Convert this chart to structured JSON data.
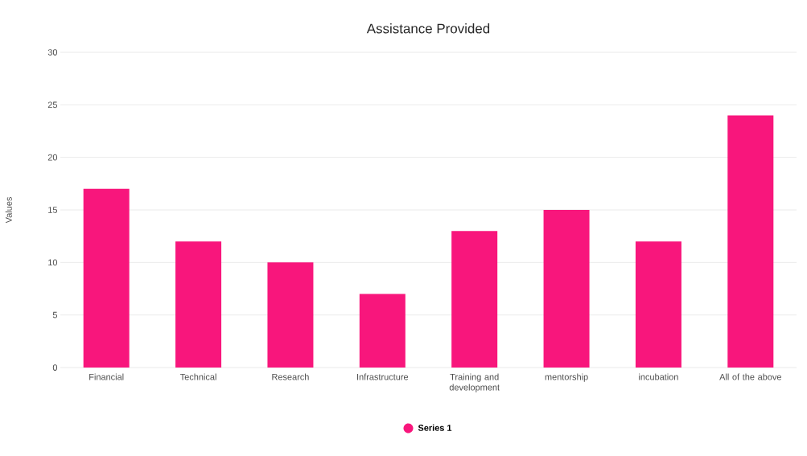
{
  "chart_data": {
    "type": "bar",
    "title": "Assistance Provided",
    "ylabel": "Values",
    "categories": [
      "Financial",
      "Technical",
      "Research",
      "Infrastructure",
      "Training and development",
      "mentorship",
      "incubation",
      "All of the above"
    ],
    "series": [
      {
        "name": "Series 1",
        "color": "#f8167c",
        "values": [
          17,
          12,
          10,
          7,
          13,
          15,
          12,
          24
        ]
      }
    ],
    "ylim": [
      0,
      30
    ],
    "yticks": [
      0,
      5,
      10,
      15,
      20,
      25,
      30
    ],
    "grid": "y",
    "legend": "bottom"
  }
}
